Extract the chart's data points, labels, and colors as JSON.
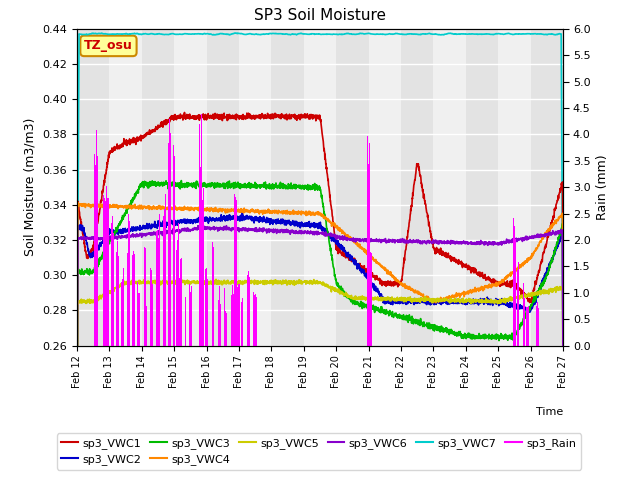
{
  "title": "SP3 Soil Moisture",
  "ylabel_left": "Soil Moisture (m3/m3)",
  "ylabel_right": "Rain (mm)",
  "xlabel": "Time",
  "ylim_left": [
    0.26,
    0.44
  ],
  "ylim_right": [
    0.0,
    6.0
  ],
  "yticks_left": [
    0.26,
    0.28,
    0.3,
    0.32,
    0.34,
    0.36,
    0.38,
    0.4,
    0.42,
    0.44
  ],
  "yticks_right": [
    0.0,
    0.5,
    1.0,
    1.5,
    2.0,
    2.5,
    3.0,
    3.5,
    4.0,
    4.5,
    5.0,
    5.5,
    6.0
  ],
  "xtick_labels": [
    "Feb 12",
    "Feb 13",
    "Feb 14",
    "Feb 15",
    "Feb 16",
    "Feb 17",
    "Feb 18",
    "Feb 19",
    "Feb 20",
    "Feb 21",
    "Feb 22",
    "Feb 23",
    "Feb 24",
    "Feb 25",
    "Feb 26",
    "Feb 27"
  ],
  "colors": {
    "sp3_VWC1": "#cc0000",
    "sp3_VWC2": "#0000cc",
    "sp3_VWC3": "#00bb00",
    "sp3_VWC4": "#ff8800",
    "sp3_VWC5": "#cccc00",
    "sp3_VWC6": "#8800cc",
    "sp3_VWC7": "#00cccc",
    "sp3_Rain": "#ff00ff"
  },
  "plot_bg_light": "#f0f0f0",
  "plot_bg_dark": "#d8d8d8",
  "annotation_text": "TZ_osu",
  "annotation_color": "#cc0000",
  "annotation_bg": "#ffff99",
  "annotation_border": "#cc8800",
  "n_days": 15,
  "n_per_day": 144
}
